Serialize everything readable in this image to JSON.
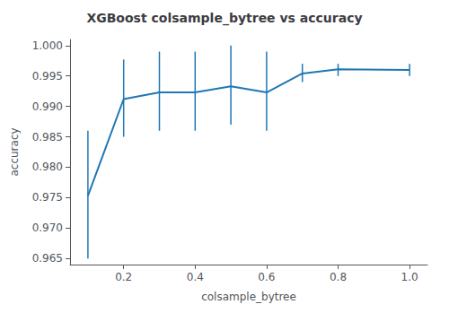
{
  "chart_data": {
    "type": "line",
    "title": "XGBoost colsample_bytree vs accuracy",
    "xlabel": "colsample_bytree",
    "ylabel": "accuracy",
    "x": [
      0.1,
      0.2,
      0.3,
      0.4,
      0.5,
      0.6,
      0.7,
      0.8,
      1.0
    ],
    "values": [
      0.9753,
      0.9912,
      0.9923,
      0.9923,
      0.9933,
      0.9923,
      0.9954,
      0.9961,
      0.996
    ],
    "yerr_lower": [
      0.0103,
      0.0062,
      0.0063,
      0.0063,
      0.0063,
      0.0063,
      0.0014,
      0.0011,
      0.001
    ],
    "yerr_upper": [
      0.0107,
      0.0065,
      0.0067,
      0.0067,
      0.0067,
      0.0067,
      0.0016,
      0.0009,
      0.001
    ],
    "color": "#1f77b4",
    "xlim": [
      0.05,
      1.05
    ],
    "ylim": [
      0.964,
      1.001
    ],
    "xticks": [
      0.2,
      0.4,
      0.6,
      0.8,
      {
        "value": 1.0,
        "label": "1.0"
      }
    ],
    "yticks": [
      0.965,
      {
        "value": 0.97,
        "label": "0.970"
      },
      0.975,
      {
        "value": 0.98,
        "label": "0.980"
      },
      0.985,
      {
        "value": 0.99,
        "label": "0.990"
      },
      0.995,
      {
        "value": 1.0,
        "label": "1.000"
      }
    ],
    "grid": false
  }
}
